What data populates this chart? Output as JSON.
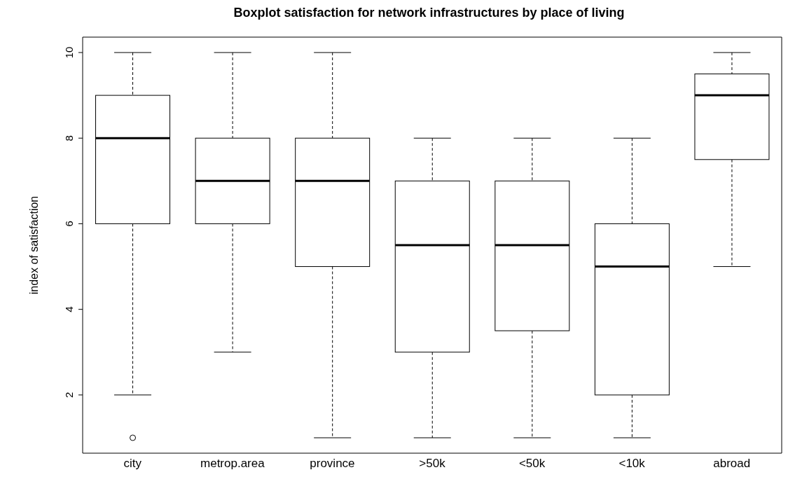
{
  "chart_data": {
    "type": "box",
    "title": "Boxplot satisfaction for network infrastructures by place of living",
    "ylabel": "index of satisfaction",
    "categories": [
      "city",
      "metrop.area",
      "province",
      ">50k",
      "<50k",
      "<10k",
      "abroad"
    ],
    "boxes": [
      {
        "low": 2,
        "q1": 6,
        "median": 8,
        "q3": 9,
        "high": 10,
        "outliers": [
          1
        ]
      },
      {
        "low": 3,
        "q1": 6,
        "median": 7,
        "q3": 8,
        "high": 10
      },
      {
        "low": 1,
        "q1": 5,
        "median": 7,
        "q3": 8,
        "high": 10
      },
      {
        "low": 1,
        "q1": 3,
        "median": 5.5,
        "q3": 7,
        "high": 8
      },
      {
        "low": 1,
        "q1": 3.5,
        "median": 5.5,
        "q3": 7,
        "high": 8
      },
      {
        "low": 1,
        "q1": 2,
        "median": 5,
        "q3": 6,
        "high": 8
      },
      {
        "low": 5,
        "q1": 7.5,
        "median": 9,
        "q3": 9.5,
        "high": 10
      }
    ],
    "ylim": [
      0.64,
      10.36
    ],
    "yticks": [
      2,
      4,
      6,
      8,
      10
    ],
    "grid": false
  }
}
